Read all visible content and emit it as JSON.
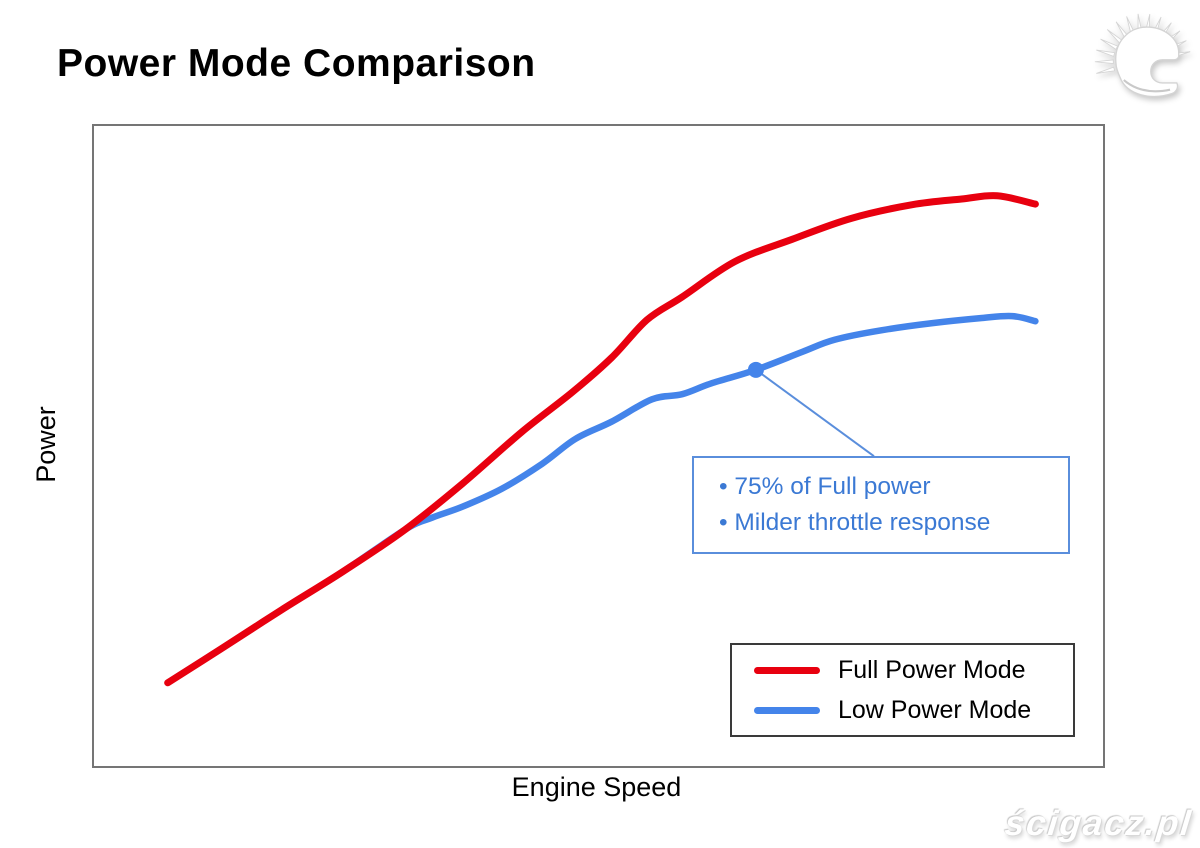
{
  "header": {
    "title": "Power Mode Comparison"
  },
  "branding": {
    "logo_icon": "scigacz-helmet-logo",
    "watermark_text": "ścigacz.pl"
  },
  "chart_data": {
    "type": "line",
    "title": "Power Mode Comparison",
    "xlabel": "Engine Speed",
    "ylabel": "Power",
    "x_axis": {
      "label": "Engine Speed",
      "range": [
        0,
        100
      ],
      "ticks": []
    },
    "y_axis": {
      "label": "Power",
      "range": [
        0,
        100
      ],
      "ticks": []
    },
    "grid": false,
    "legend": {
      "position": "lower-right-inside",
      "border_color": "#3a3a3a"
    },
    "series": [
      {
        "name": "Full Power Mode",
        "color": "#e8000f",
        "stroke_width": 7,
        "points": [
          [
            7.3,
            13.0
          ],
          [
            12.7,
            18.4
          ],
          [
            18.6,
            24.4
          ],
          [
            24.6,
            30.3
          ],
          [
            30.8,
            36.9
          ],
          [
            36.5,
            44.1
          ],
          [
            42.4,
            52.2
          ],
          [
            47.4,
            58.4
          ],
          [
            51.3,
            63.8
          ],
          [
            54.8,
            69.7
          ],
          [
            58.3,
            73.3
          ],
          [
            63.5,
            78.8
          ],
          [
            69.2,
            82.3
          ],
          [
            75.1,
            85.6
          ],
          [
            81.1,
            87.7
          ],
          [
            86.0,
            88.6
          ],
          [
            89.5,
            89.1
          ],
          [
            93.3,
            87.8
          ]
        ]
      },
      {
        "name": "Low Power Mode",
        "color": "#4484ea",
        "stroke_width": 6.5,
        "points": [
          [
            7.3,
            13.0
          ],
          [
            12.7,
            18.4
          ],
          [
            18.6,
            24.4
          ],
          [
            24.6,
            30.3
          ],
          [
            30.8,
            36.9
          ],
          [
            33.5,
            38.8
          ],
          [
            36.5,
            40.5
          ],
          [
            40.4,
            43.3
          ],
          [
            44.4,
            47.2
          ],
          [
            47.7,
            51.1
          ],
          [
            51.3,
            53.8
          ],
          [
            55.3,
            57.3
          ],
          [
            58.3,
            58.1
          ],
          [
            61.2,
            59.8
          ],
          [
            65.6,
            61.9
          ],
          [
            70.2,
            64.7
          ],
          [
            73.4,
            66.6
          ],
          [
            78.1,
            68.1
          ],
          [
            83.1,
            69.2
          ],
          [
            88.0,
            70.0
          ],
          [
            91.0,
            70.3
          ],
          [
            93.3,
            69.5
          ]
        ]
      }
    ],
    "annotation": {
      "marker": {
        "x": 65.6,
        "y": 61.9,
        "radius": 8,
        "color": "#4484ea"
      },
      "leader_end": {
        "x": 77.3,
        "y": 48.4
      },
      "lines": [
        "• 75% of Full power",
        "• Milder throttle response"
      ],
      "border_color": "#5a8edc",
      "text_color": "#3b79d4"
    }
  }
}
